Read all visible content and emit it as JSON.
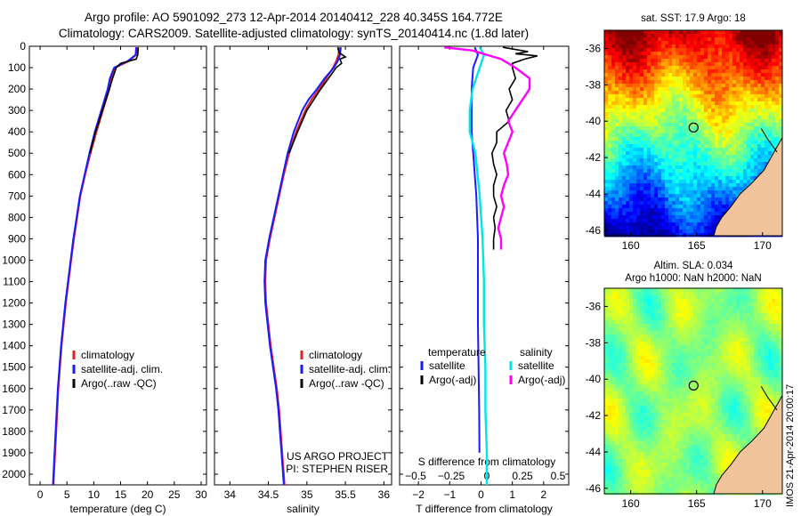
{
  "header": {
    "line1": "Argo profile: AO 5901092_273 12-Apr-2014 20140412_228 40.345S 164.772E",
    "line2": "Climatology: CARS2009. Satellite-adjusted climatology: synTS_20140414.nc (1.8d later)"
  },
  "sidebar_text": "IMOS 21-Apr-2014 20:00:17",
  "chart_data": [
    {
      "id": "temperature",
      "type": "line",
      "xlabel": "temperature (deg C)",
      "ylabel": "",
      "xlim": [
        -2,
        31
      ],
      "ylim": [
        2050,
        0
      ],
      "xticks": [
        0,
        5,
        10,
        15,
        20,
        25,
        30
      ],
      "xtick_labels": [
        "0",
        "5",
        "10",
        "15",
        "20",
        "25",
        "30"
      ],
      "yticks": [
        0,
        100,
        200,
        300,
        400,
        500,
        600,
        700,
        800,
        900,
        1000,
        1100,
        1200,
        1300,
        1400,
        1500,
        1600,
        1700,
        1800,
        1900,
        2000
      ],
      "ytick_labels": [
        "0",
        "100",
        "200",
        "300",
        "400",
        "500",
        "600",
        "700",
        "800",
        "900",
        "1000",
        "1100",
        "1200",
        "1300",
        "1400",
        "1500",
        "1600",
        "1700",
        "1800",
        "1900",
        "2000"
      ],
      "legend": [
        "climatology",
        "satellite-adj. clim.",
        "Argo(..raw -QC)"
      ],
      "legend_colors": [
        "#e02020",
        "#1a1aff",
        "#000000"
      ],
      "series": [
        {
          "name": "climatology",
          "color": "#e02020",
          "depth": [
            5,
            40,
            70,
            100,
            150,
            200,
            300,
            400,
            500,
            600,
            700,
            800,
            900,
            1000,
            1200,
            1400,
            1600,
            1800,
            2000,
            2050
          ],
          "values": [
            18.1,
            17.9,
            16.5,
            14.0,
            13.3,
            12.9,
            11.7,
            10.5,
            9.4,
            8.4,
            7.5,
            6.9,
            6.3,
            5.8,
            4.8,
            4.0,
            3.4,
            3.0,
            2.6,
            2.5
          ]
        },
        {
          "name": "satellite-adj. clim.",
          "color": "#1a1aff",
          "depth": [
            5,
            40,
            70,
            100,
            150,
            200,
            300,
            400,
            500,
            600,
            700,
            800,
            900,
            1000,
            1200,
            1400,
            1600,
            1800,
            2000,
            2050
          ],
          "values": [
            17.9,
            17.8,
            16.3,
            13.8,
            13.0,
            12.6,
            11.4,
            10.2,
            9.2,
            8.3,
            7.4,
            6.8,
            6.2,
            5.7,
            4.7,
            3.9,
            3.3,
            2.9,
            2.5,
            2.4
          ]
        },
        {
          "name": "Argo(..raw -QC)",
          "color": "#000000",
          "depth": [
            5,
            40,
            60,
            80,
            100,
            150,
            200,
            300,
            350,
            400,
            450,
            500
          ],
          "values": [
            18.3,
            18.2,
            17.9,
            15.0,
            14.2,
            13.5,
            12.9,
            11.6,
            11.0,
            10.3,
            9.8,
            9.3
          ]
        }
      ]
    },
    {
      "id": "salinity",
      "type": "line",
      "xlabel": "salinity",
      "ylabel": "",
      "xlim": [
        33.8,
        36.1
      ],
      "ylim": [
        2050,
        0
      ],
      "xticks": [
        34,
        34.5,
        35,
        35.5,
        36
      ],
      "xtick_labels": [
        "34",
        "34.5",
        "35",
        "35.5",
        "36"
      ],
      "legend": [
        "climatology",
        "satellite-adj. clim.",
        "Argo(..raw -QC)"
      ],
      "legend_colors": [
        "#e02020",
        "#1a1aff",
        "#000000"
      ],
      "annotations": [
        "US ARGO PROJECT",
        "PI: STEPHEN RISER"
      ],
      "series": [
        {
          "name": "climatology",
          "color": "#e02020",
          "depth": [
            5,
            40,
            70,
            100,
            150,
            200,
            250,
            300,
            400,
            500,
            600,
            700,
            800,
            900,
            1000,
            1100,
            1200,
            1300,
            1400,
            1500,
            1600,
            1700,
            1800,
            1900,
            2000,
            2050
          ],
          "values": [
            35.42,
            35.41,
            35.38,
            35.34,
            35.25,
            35.16,
            35.06,
            34.98,
            34.86,
            34.77,
            34.7,
            34.64,
            34.58,
            34.52,
            34.47,
            34.46,
            34.47,
            34.5,
            34.53,
            34.57,
            34.61,
            34.64,
            34.66,
            34.68,
            34.7,
            34.71
          ]
        },
        {
          "name": "satellite-adj. clim.",
          "color": "#1a1aff",
          "depth": [
            5,
            40,
            70,
            100,
            150,
            200,
            250,
            300,
            400,
            500,
            600,
            700,
            800,
            900,
            1000,
            1100,
            1200,
            1300,
            1400,
            1500,
            1600,
            1700,
            1800,
            1900,
            2000,
            2050
          ],
          "values": [
            35.44,
            35.43,
            35.4,
            35.35,
            35.23,
            35.13,
            35.02,
            34.94,
            34.83,
            34.75,
            34.69,
            34.63,
            34.57,
            34.51,
            34.46,
            34.45,
            34.46,
            34.49,
            34.52,
            34.56,
            34.6,
            34.63,
            34.65,
            34.67,
            34.69,
            34.7
          ]
        },
        {
          "name": "Argo(..raw -QC)",
          "color": "#000000",
          "depth": [
            5,
            30,
            50,
            60,
            80,
            100,
            150,
            200,
            300,
            400,
            500
          ],
          "values": [
            35.4,
            35.42,
            35.5,
            35.43,
            35.45,
            35.38,
            35.28,
            35.18,
            35.0,
            34.88,
            34.77
          ]
        }
      ]
    },
    {
      "id": "differences",
      "type": "line",
      "xlabel": "T difference from climatology",
      "xlabel_top": "S difference from climatology",
      "xlim": [
        -2.6,
        2.8
      ],
      "ylim": [
        2050,
        0
      ],
      "xticks": [
        -2,
        -1,
        0,
        1,
        2
      ],
      "xtick_labels": [
        "−2",
        "−1",
        "0",
        "1",
        "2"
      ],
      "xticks_top": [
        -0.5,
        -0.25,
        0,
        0.25,
        0.5
      ],
      "xtick_labels_top": [
        "−0.5",
        "−0.25",
        "0",
        "0.25",
        "0.5"
      ],
      "legend_temperature": {
        "title": "temperature",
        "items": [
          "satellite",
          "Argo(-adj)"
        ],
        "colors": [
          "#1a1aff",
          "#000000"
        ]
      },
      "legend_salinity": {
        "title": "salinity",
        "items": [
          "satellite",
          "Argo(-adj)"
        ],
        "colors": [
          "#00e5e5",
          "#ff00ff"
        ]
      },
      "series": [
        {
          "name": "temperature satellite",
          "color": "#1a1aff",
          "depth": [
            5,
            40,
            100,
            200,
            300,
            400,
            500,
            700,
            900,
            1100,
            1300,
            1500,
            1700,
            1900
          ],
          "values": [
            -0.2,
            -0.1,
            -0.25,
            -0.3,
            -0.3,
            -0.3,
            -0.25,
            -0.15,
            -0.1,
            -0.1,
            -0.1,
            -0.08,
            -0.06,
            -0.05
          ]
        },
        {
          "name": "temperature Argo(-adj)",
          "color": "#000000",
          "depth": [
            5,
            25,
            35,
            45,
            60,
            80,
            100,
            150,
            200,
            250,
            300,
            350,
            400,
            450,
            500,
            550,
            600,
            650,
            700,
            750,
            800,
            850,
            900,
            950
          ],
          "values": [
            0.7,
            1.5,
            1.1,
            1.8,
            1.4,
            1.0,
            1.0,
            1.1,
            0.9,
            1.0,
            0.8,
            0.9,
            0.5,
            0.5,
            0.35,
            0.4,
            0.5,
            0.4,
            0.4,
            0.5,
            0.4,
            0.45,
            0.4,
            0.4
          ]
        },
        {
          "name": "salinity satellite",
          "color": "#00e5e5",
          "depth": [
            5,
            40,
            100,
            200,
            300,
            400,
            500,
            700,
            900,
            1100,
            1300,
            1500,
            1700,
            1900,
            2050
          ],
          "values": [
            -0.05,
            -0.02,
            -0.05,
            -0.1,
            -0.12,
            -0.12,
            -0.08,
            -0.05,
            -0.03,
            -0.02,
            -0.02,
            -0.01,
            -0.01,
            0,
            0
          ]
        },
        {
          "name": "salinity Argo(-adj)",
          "color": "#ff00ff",
          "depth": [
            5,
            20,
            40,
            60,
            100,
            150,
            200,
            250,
            300,
            350,
            400,
            450,
            500,
            550,
            600,
            650,
            700,
            750,
            800,
            850,
            900,
            950
          ],
          "values": [
            -0.3,
            -0.1,
            0,
            0.1,
            0.2,
            0.3,
            0.3,
            0.25,
            0.2,
            0.15,
            0.18,
            0.15,
            0.12,
            0.14,
            0.15,
            0.12,
            0.1,
            0.12,
            0.1,
            0.08,
            0.1,
            0.1
          ]
        }
      ]
    },
    {
      "id": "sst_map",
      "type": "heatmap",
      "title": "sat. SST: 17.9 Argo: 18",
      "xlim": [
        158,
        171.5
      ],
      "ylim": [
        -46.3,
        -35
      ],
      "xticks": [
        160,
        165,
        170
      ],
      "xtick_labels": [
        "160",
        "165",
        "170"
      ],
      "yticks": [
        -36,
        -38,
        -40,
        -42,
        -44,
        -46
      ],
      "ytick_labels": [
        "-36",
        "-38",
        "-40",
        "-42",
        "-44",
        "-46"
      ],
      "marker": {
        "lon": 164.77,
        "lat": -40.35
      }
    },
    {
      "id": "sla_map",
      "type": "heatmap",
      "title": "Altim. SLA: 0.034",
      "subtitle": "Argo h1000: NaN h2000: NaN",
      "xlim": [
        158,
        171.5
      ],
      "ylim": [
        -46.3,
        -35
      ],
      "xticks": [
        160,
        165,
        170
      ],
      "xtick_labels": [
        "160",
        "165",
        "170"
      ],
      "yticks": [
        -36,
        -38,
        -40,
        -42,
        -44,
        -46
      ],
      "ytick_labels": [
        "-36",
        "-38",
        "-40",
        "-42",
        "-44",
        "-46"
      ],
      "marker": {
        "lon": 164.77,
        "lat": -40.35
      }
    }
  ]
}
